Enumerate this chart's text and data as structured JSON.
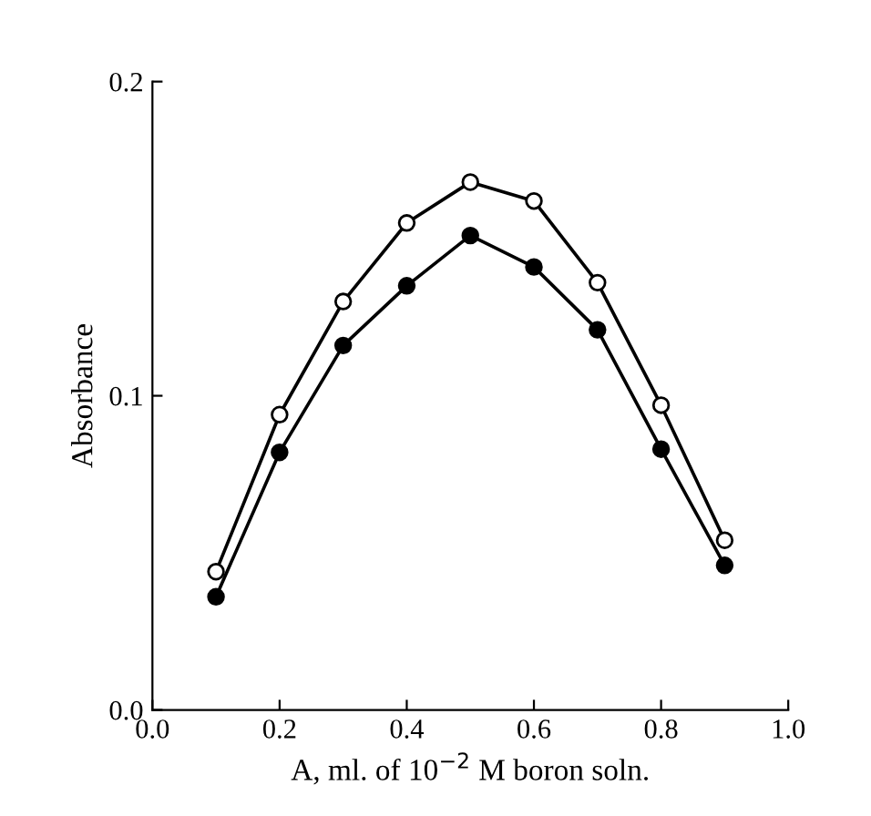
{
  "chart_data": {
    "type": "line",
    "xlabel": "A, ml. of 10$^{−2}$ M boron soln.",
    "ylabel": "Absorbance",
    "x": [
      0.1,
      0.2,
      0.3,
      0.4,
      0.5,
      0.6,
      0.7,
      0.8,
      0.9
    ],
    "series": [
      {
        "color": "#000000",
        "values": [
          0.044,
          0.094,
          0.13,
          0.155,
          0.168,
          0.162,
          0.136,
          0.097,
          0.054
        ]
      },
      {
        "color": "#000000",
        "values": [
          0.036,
          0.082,
          0.116,
          0.135,
          0.151,
          0.141,
          0.121,
          0.083,
          0.046
        ]
      }
    ],
    "xlim": [
      0.0,
      1.0
    ],
    "ylim": [
      0.0,
      0.2
    ],
    "xticks": [
      {
        "value": 0.0,
        "label": "0.0"
      },
      0.2,
      0.4,
      0.6,
      0.8,
      {
        "value": 1.0,
        "label": "1.0"
      }
    ],
    "yticks": [
      {
        "value": 0.0,
        "label": "0.0"
      },
      0.1,
      0.2
    ],
    "marker": "circle",
    "line_style": "solid",
    "grid": false,
    "legend": false
  }
}
